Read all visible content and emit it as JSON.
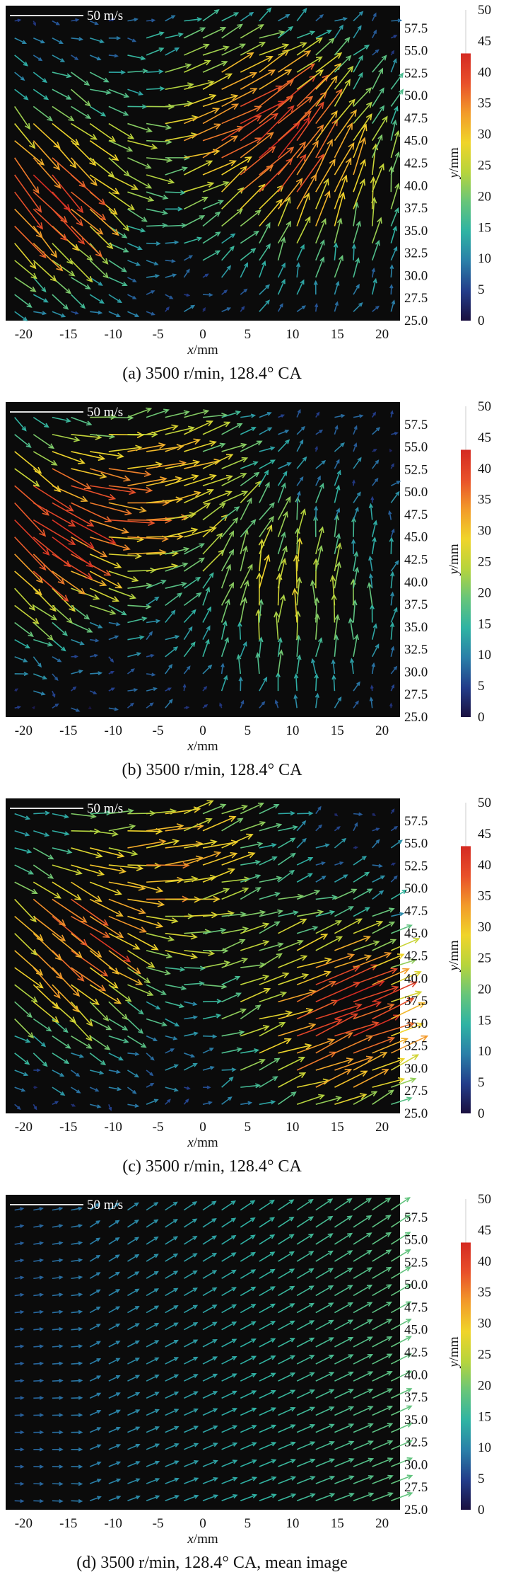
{
  "figure": {
    "colorbar": {
      "ticks": [
        "50",
        "45",
        "40",
        "35",
        "30",
        "25",
        "20",
        "15",
        "10",
        "5",
        "0"
      ],
      "range": [
        0,
        50
      ],
      "colors": [
        "#1a1040",
        "#233d8a",
        "#2a7fa8",
        "#2fb3a3",
        "#67c57a",
        "#b7d43c",
        "#f0d42a",
        "#f29a2a",
        "#e8502a",
        "#d42a22"
      ]
    },
    "background_color": "#0b0b0b",
    "arrow_scale_label": "50 m/s",
    "x_axis": {
      "label_var": "x",
      "label_unit": "/mm",
      "ticks": [
        "-20",
        "-15",
        "-10",
        "-5",
        "0",
        "5",
        "10",
        "15",
        "20"
      ]
    },
    "y_axis": {
      "label_var": "y",
      "label_unit": "/mm",
      "ticks": [
        "57.5",
        "55.0",
        "52.5",
        "50.0",
        "47.5",
        "45.0",
        "42.5",
        "40.0",
        "37.5",
        "35.0",
        "32.5",
        "30.0",
        "27.5",
        "25.0"
      ]
    }
  },
  "chart_data": [
    {
      "type": "vector-field",
      "caption": "(a) 3500 r/min, 128.4° CA",
      "xlim": [
        -22,
        22
      ],
      "ylim": [
        25,
        60
      ],
      "vortices": [
        {
          "cx": -19,
          "cy": 40,
          "strength": 48,
          "sense": "down"
        },
        {
          "cx": 5,
          "cy": 46,
          "strength": 40,
          "sense": "right"
        },
        {
          "cx": 14,
          "cy": 40,
          "strength": 30,
          "sense": "up"
        }
      ]
    },
    {
      "type": "vector-field",
      "caption": "(b) 3500 r/min, 128.4° CA",
      "xlim": [
        -22,
        22
      ],
      "ylim": [
        25,
        60
      ],
      "vortices": [
        {
          "cx": -20,
          "cy": 46,
          "strength": 45,
          "sense": "down"
        },
        {
          "cx": -6,
          "cy": 50,
          "strength": 32,
          "sense": "right"
        },
        {
          "cx": 10,
          "cy": 38,
          "strength": 30,
          "sense": "up"
        }
      ]
    },
    {
      "type": "vector-field",
      "caption": "(c) 3500 r/min, 128.4° CA",
      "xlim": [
        -22,
        22
      ],
      "ylim": [
        25,
        60
      ],
      "vortices": [
        {
          "cx": -16,
          "cy": 44,
          "strength": 42,
          "sense": "down"
        },
        {
          "cx": 15,
          "cy": 35,
          "strength": 45,
          "sense": "right"
        },
        {
          "cx": -4,
          "cy": 54,
          "strength": 30,
          "sense": "right"
        }
      ]
    },
    {
      "type": "vector-field",
      "caption": "(d) 3500 r/min, 128.4° CA, mean image",
      "xlim": [
        -22,
        22
      ],
      "ylim": [
        25,
        60
      ],
      "vortices": [
        {
          "cx": 0,
          "cy": 42,
          "strength": 16,
          "sense": "uniform"
        }
      ]
    }
  ]
}
